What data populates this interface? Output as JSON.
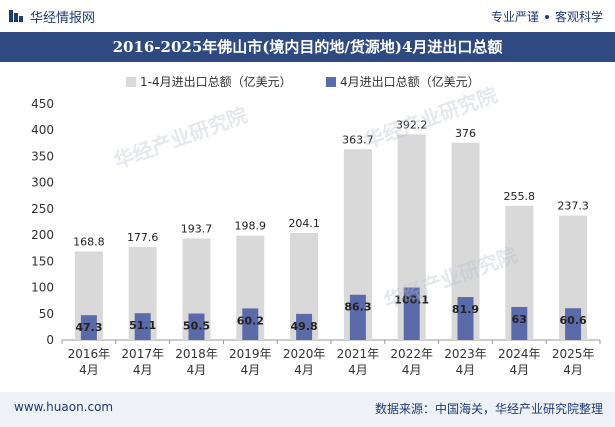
{
  "header": {
    "brand": "华经情报网",
    "tag1": "专业严谨",
    "tag2": "客观科学"
  },
  "title": "2016-2025年佛山市(境内目的地/货源地)4月进出口总额",
  "footer": {
    "url": "www.huaon.com",
    "source": "数据来源：中国海关，华经产业研究院整理"
  },
  "watermarks": [
    "华经产业研究院",
    "www.huaon.com"
  ],
  "colors": {
    "series1": "#d9d9d9",
    "series2": "#5b6aa8",
    "title_bg": "#2f4a80"
  },
  "chart_data": {
    "type": "bar",
    "categories": [
      "2016年\n4月",
      "2017年\n4月",
      "2018年\n4月",
      "2019年\n4月",
      "2020年\n4月",
      "2021年\n4月",
      "2022年\n4月",
      "2023年\n4月",
      "2024年\n4月",
      "2025年\n4月"
    ],
    "series": [
      {
        "name": "1-4月进出口总额（亿美元）",
        "values": [
          168.8,
          177.6,
          193.7,
          198.9,
          204.1,
          363.7,
          392.2,
          376,
          255.8,
          237.3
        ],
        "color": "#d9d9d9"
      },
      {
        "name": "4月进出口总额（亿美元）",
        "values": [
          47.3,
          51.1,
          50.5,
          60.2,
          49.8,
          86.3,
          100.1,
          81.9,
          63,
          60.6
        ],
        "color": "#5b6aa8"
      }
    ],
    "ylim": [
      0,
      450
    ],
    "yticks": [
      0,
      50,
      100,
      150,
      200,
      250,
      300,
      350,
      400,
      450
    ],
    "legend_position": "top",
    "grid": false
  }
}
